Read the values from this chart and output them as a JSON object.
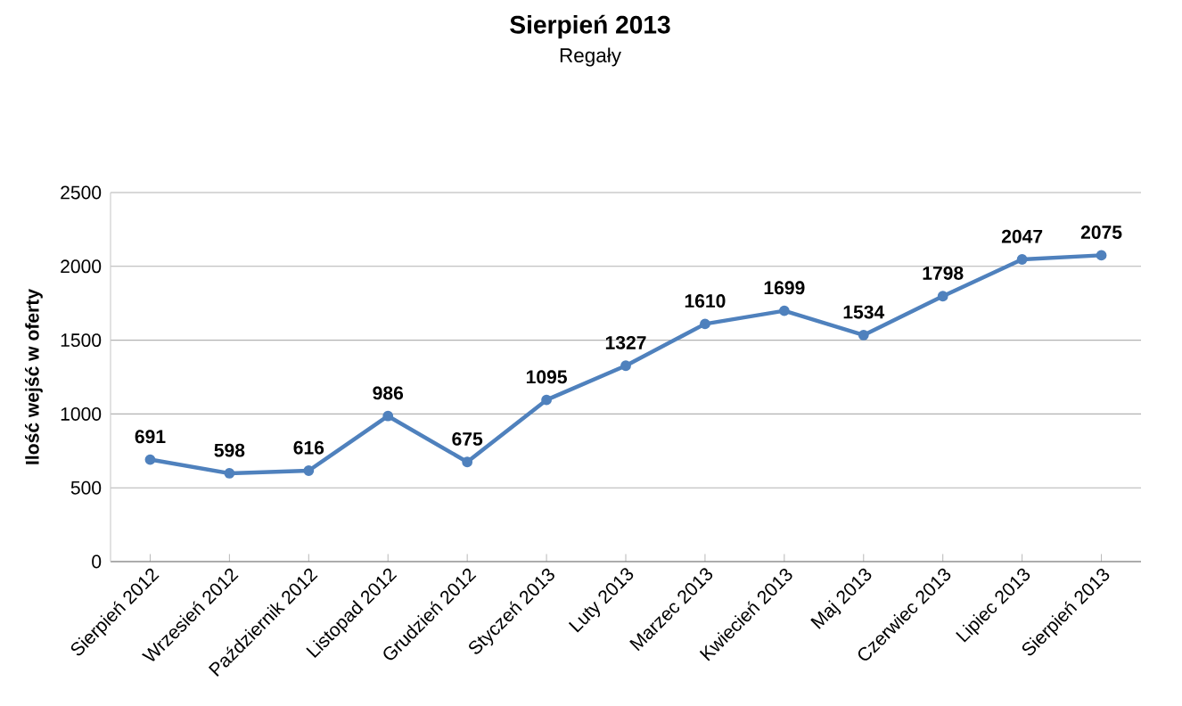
{
  "chart_data": {
    "type": "line",
    "title": "Sierpień 2013",
    "subtitle": "Regały",
    "ylabel": "Ilość wejść w oferty",
    "categories": [
      "Sierpień 2012",
      "Wrzesień 2012",
      "Październik 2012",
      "Listopad 2012",
      "Grudzień 2012",
      "Styczeń 2013",
      "Luty 2013",
      "Marzec 2013",
      "Kwiecień 2013",
      "Maj 2013",
      "Czerwiec 2013",
      "Lipiec 2013",
      "Sierpień 2013"
    ],
    "values": [
      691,
      598,
      616,
      986,
      675,
      1095,
      1327,
      1610,
      1699,
      1534,
      1798,
      2047,
      2075
    ],
    "color": "#4f81bd",
    "ylim": [
      0,
      2500
    ],
    "yticks": [
      0,
      500,
      1000,
      1500,
      2000,
      2500
    ],
    "grid": "y",
    "data_labels": true,
    "marker": "circle",
    "line_style": "solid"
  }
}
